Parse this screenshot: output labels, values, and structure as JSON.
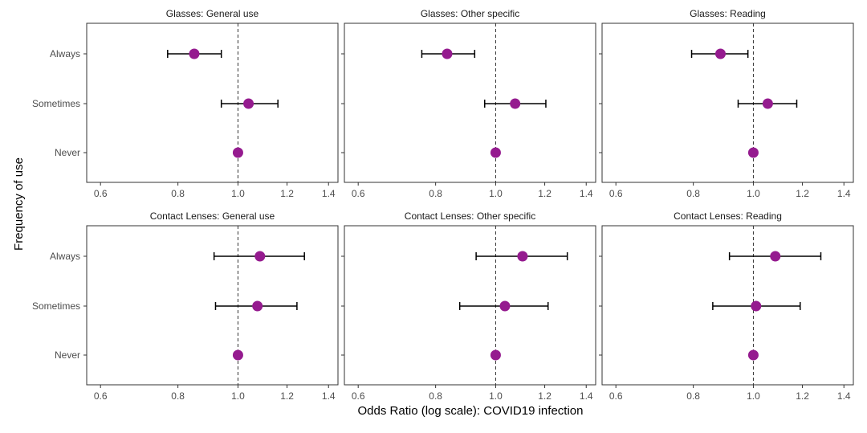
{
  "chart_data": {
    "type": "scatter",
    "subtype": "forest-plot",
    "xlabel": "Odds Ratio (log scale): COVID19 infection",
    "ylabel": "Frequency of use",
    "x_scale": "log",
    "xlim": [
      0.57,
      1.45
    ],
    "x_ticks": [
      0.6,
      0.8,
      1.0,
      1.2,
      1.4
    ],
    "x_tick_labels": [
      "0.6",
      "0.8",
      "1.0",
      "1.2",
      "1.4"
    ],
    "categories": [
      "Always",
      "Sometimes",
      "Never"
    ],
    "reference_line": 1.0,
    "grid": false,
    "point_color": "#951b8f",
    "panels": [
      {
        "title": "Glasses: General use",
        "points": [
          {
            "category": "Always",
            "or": 0.85,
            "lower": 0.77,
            "upper": 0.94
          },
          {
            "category": "Sometimes",
            "or": 1.04,
            "lower": 0.94,
            "upper": 1.16
          },
          {
            "category": "Never",
            "or": 1.0,
            "lower": null,
            "upper": null
          }
        ]
      },
      {
        "title": "Glasses: Other specific",
        "points": [
          {
            "category": "Always",
            "or": 0.835,
            "lower": 0.76,
            "upper": 0.925
          },
          {
            "category": "Sometimes",
            "or": 1.075,
            "lower": 0.96,
            "upper": 1.205
          },
          {
            "category": "Never",
            "or": 1.0,
            "lower": null,
            "upper": null
          }
        ]
      },
      {
        "title": "Glasses: Reading",
        "points": [
          {
            "category": "Always",
            "or": 0.885,
            "lower": 0.795,
            "upper": 0.98
          },
          {
            "category": "Sometimes",
            "or": 1.055,
            "lower": 0.945,
            "upper": 1.175
          },
          {
            "category": "Never",
            "or": 1.0,
            "lower": null,
            "upper": null
          }
        ]
      },
      {
        "title": "Contact Lenses: General use",
        "points": [
          {
            "category": "Always",
            "or": 1.085,
            "lower": 0.915,
            "upper": 1.28
          },
          {
            "category": "Sometimes",
            "or": 1.075,
            "lower": 0.92,
            "upper": 1.245
          },
          {
            "category": "Never",
            "or": 1.0,
            "lower": null,
            "upper": null
          }
        ]
      },
      {
        "title": "Contact Lenses: Other specific",
        "points": [
          {
            "category": "Always",
            "or": 1.105,
            "lower": 0.93,
            "upper": 1.305
          },
          {
            "category": "Sometimes",
            "or": 1.035,
            "lower": 0.875,
            "upper": 1.215
          },
          {
            "category": "Never",
            "or": 1.0,
            "lower": null,
            "upper": null
          }
        ]
      },
      {
        "title": "Contact Lenses: Reading",
        "points": [
          {
            "category": "Always",
            "or": 1.085,
            "lower": 0.915,
            "upper": 1.285
          },
          {
            "category": "Sometimes",
            "or": 1.01,
            "lower": 0.86,
            "upper": 1.19
          },
          {
            "category": "Never",
            "or": 1.0,
            "lower": null,
            "upper": null
          }
        ]
      }
    ]
  }
}
